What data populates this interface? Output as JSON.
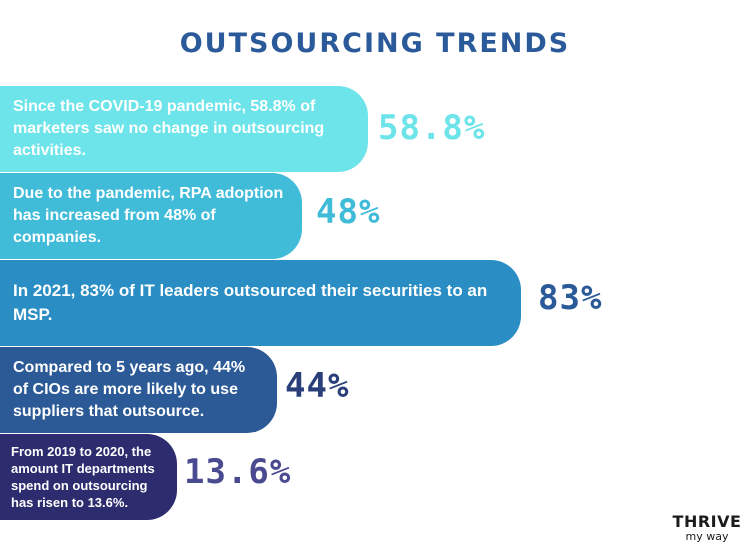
{
  "title": "OUTSOURCING TRENDS",
  "items": [
    {
      "text": "Since the COVID-19 pandemic, 58.8% of marketers saw no change in outsourcing activities.",
      "stat": "58.8%",
      "bar_color": "#6de4ea",
      "stat_color": "#6de4ea"
    },
    {
      "text": "Due to the pandemic, RPA adoption has increased from 48% of companies.",
      "stat": "48%",
      "bar_color": "#40bcd9",
      "stat_color": "#40bcd9"
    },
    {
      "text": "In 2021, 83% of IT leaders outsourced their securities to an MSP.",
      "stat": "83%",
      "bar_color": "#2a8ec4",
      "stat_color": "#2a5a98"
    },
    {
      "text": "Compared to 5 years ago, 44% of CIOs are more likely to use suppliers that outsource.",
      "stat": "44%",
      "bar_color": "#2c5a96",
      "stat_color": "#2a3f7a"
    },
    {
      "text": "From 2019 to 2020, the amount IT departments spend on outsourcing has risen to 13.6%.",
      "stat": "13.6%",
      "bar_color": "#2c2c6e",
      "stat_color": "#4a4a90"
    }
  ],
  "logo": {
    "top": "THRIVE",
    "bottom": "my way"
  }
}
